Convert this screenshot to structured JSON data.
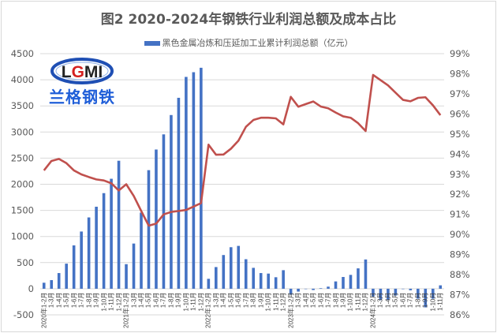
{
  "chart_data": {
    "type": "bar+line",
    "title": "图2 2020-2024年钢铁行业利润总额及成本占比",
    "legend": {
      "position": "top",
      "entries": [
        "黑色金属冶炼和压延加工业累计利润总额（亿元）"
      ]
    },
    "grid": true,
    "categories": [
      "2020年1-2月",
      "1-3月",
      "1-4月",
      "1-5月",
      "1-6月",
      "1-7月",
      "1-8月",
      "1-9月",
      "1-10月",
      "1-11月",
      "1-12月",
      "2021年1-2月",
      "1-3月",
      "1-4月",
      "1-5月",
      "1-6月",
      "1-7月",
      "1-8月",
      "1-9月",
      "1-10月",
      "1-11月",
      "1-12月",
      "2022年1-2月",
      "1-3月",
      "1-4月",
      "1-5月",
      "1-6月",
      "1-7月",
      "1-8月",
      "1-9月",
      "1-10月",
      "1-11月",
      "1-12月",
      "2023年1-2月",
      "1-3月",
      "1-4月",
      "1-5月",
      "1-6月",
      "1-7月",
      "1-8月",
      "1-9月",
      "1-10月",
      "1-11月",
      "1-12月",
      "2024年1-2月",
      "1-3月",
      "1-4月",
      "1-5月",
      "1-6月",
      "1-7月",
      "1-8月",
      "1-9月",
      "1-10月",
      "1-11月"
    ],
    "series": [
      {
        "name": "黑色金属冶炼和压延加工业累计利润总额（亿元）",
        "type": "bar",
        "axis": "left",
        "color": "#4472c4",
        "values": [
          115,
          165,
          300,
          480,
          830,
          1095,
          1365,
          1570,
          1830,
          2105,
          2450,
          470,
          865,
          1457,
          2270,
          2665,
          2955,
          3325,
          3655,
          4055,
          4145,
          4230,
          190,
          415,
          645,
          795,
          820,
          565,
          400,
          300,
          290,
          220,
          355,
          -115,
          -55,
          0,
          -25,
          10,
          40,
          140,
          225,
          265,
          390,
          560,
          -150,
          -217,
          -217,
          -130,
          0,
          -30,
          -190,
          -357,
          -190,
          65
        ]
      },
      {
        "type": "line",
        "axis": "right",
        "color": "#c0504d",
        "values": [
          93.19,
          93.66,
          93.76,
          93.55,
          93.19,
          92.99,
          92.86,
          92.74,
          92.69,
          92.55,
          92.19,
          92.5,
          91.92,
          91.17,
          90.44,
          90.54,
          91.0,
          91.12,
          91.17,
          91.22,
          91.39,
          91.56,
          94.47,
          93.97,
          93.98,
          94.27,
          94.67,
          95.36,
          95.7,
          95.81,
          95.81,
          95.78,
          95.48,
          96.85,
          96.36,
          96.49,
          96.62,
          96.37,
          96.28,
          96.07,
          95.88,
          95.81,
          95.54,
          95.15,
          97.94,
          97.68,
          97.42,
          97.06,
          96.7,
          96.63,
          96.8,
          96.83,
          96.43,
          95.94
        ]
      }
    ],
    "y_left": {
      "range": [
        -500,
        4500
      ],
      "step": 500,
      "ticks": [
        "-500",
        "0",
        "500",
        "1000",
        "1500",
        "2000",
        "2500",
        "3000",
        "3500",
        "4000",
        "4500"
      ]
    },
    "y_right": {
      "range": [
        86,
        99
      ],
      "step": 1,
      "unit": "%",
      "ticks": [
        "86%",
        "87%",
        "88%",
        "89%",
        "90%",
        "91%",
        "92%",
        "93%",
        "94%",
        "95%",
        "96%",
        "97%",
        "98%",
        "99%"
      ]
    }
  },
  "logo": {
    "text": "LGMI",
    "subtitle": "兰格钢铁"
  }
}
